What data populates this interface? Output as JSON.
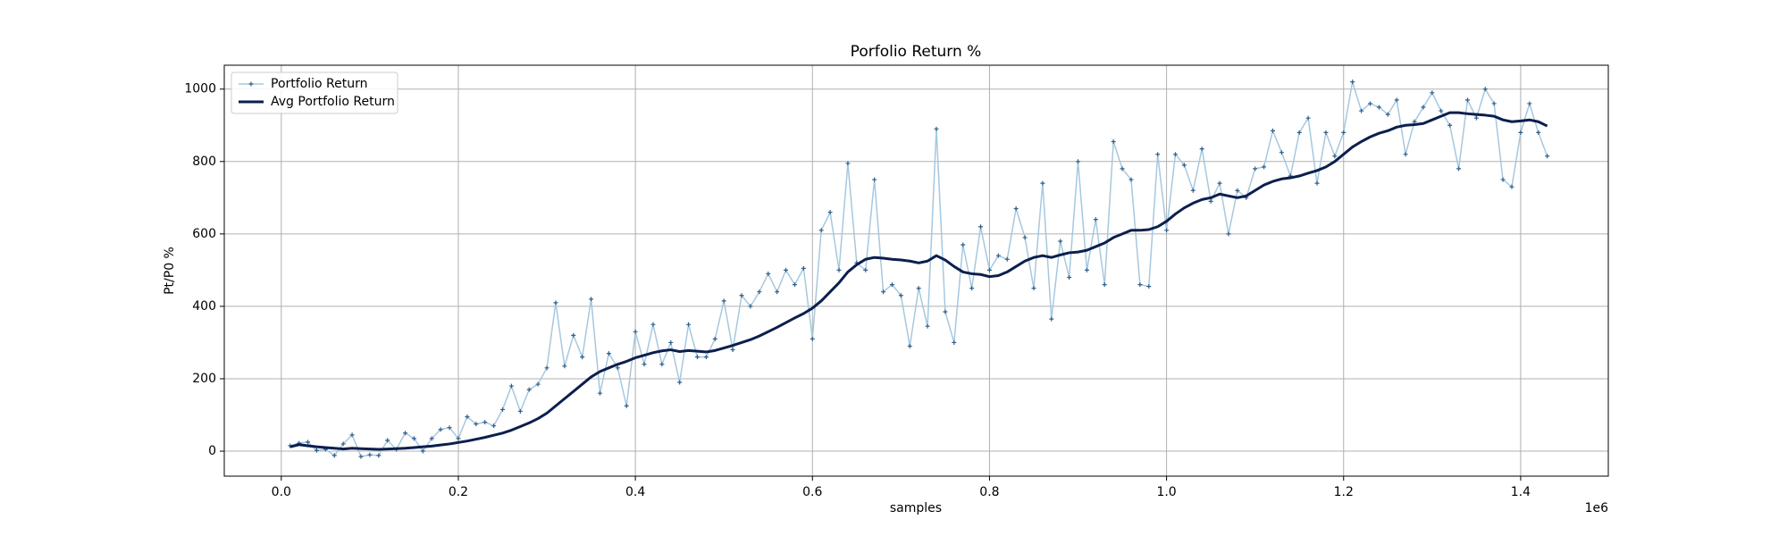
{
  "chart_data": {
    "type": "line",
    "title": "Porfolio Return %",
    "xlabel": "samples",
    "ylabel": "Pt/P0 %",
    "x_offset_label": "1e6",
    "x": [
      10000,
      20000,
      30000,
      40000,
      50000,
      60000,
      70000,
      80000,
      90000,
      100000,
      110000,
      120000,
      130000,
      140000,
      150000,
      160000,
      170000,
      180000,
      190000,
      200000,
      210000,
      220000,
      230000,
      240000,
      250000,
      260000,
      270000,
      280000,
      290000,
      300000,
      310000,
      320000,
      330000,
      340000,
      350000,
      360000,
      370000,
      380000,
      390000,
      400000,
      410000,
      420000,
      430000,
      440000,
      450000,
      460000,
      470000,
      480000,
      490000,
      500000,
      510000,
      520000,
      530000,
      540000,
      550000,
      560000,
      570000,
      580000,
      590000,
      600000,
      610000,
      620000,
      630000,
      640000,
      650000,
      660000,
      670000,
      680000,
      690000,
      700000,
      710000,
      720000,
      730000,
      740000,
      750000,
      760000,
      770000,
      780000,
      790000,
      800000,
      810000,
      820000,
      830000,
      840000,
      850000,
      860000,
      870000,
      880000,
      890000,
      900000,
      910000,
      920000,
      930000,
      940000,
      950000,
      960000,
      970000,
      980000,
      990000,
      1000000,
      1010000,
      1020000,
      1030000,
      1040000,
      1050000,
      1060000,
      1070000,
      1080000,
      1090000,
      1100000,
      1110000,
      1120000,
      1130000,
      1140000,
      1150000,
      1160000,
      1170000,
      1180000,
      1190000,
      1200000,
      1210000,
      1220000,
      1230000,
      1240000,
      1250000,
      1260000,
      1270000,
      1280000,
      1290000,
      1300000,
      1310000,
      1320000,
      1330000,
      1340000,
      1350000,
      1360000,
      1370000,
      1380000,
      1390000,
      1400000,
      1410000,
      1420000,
      1430000
    ],
    "series": [
      {
        "name": "Portfolio Return",
        "color": "#a6c8df",
        "marker_color": "#2f5f8a",
        "marker": true,
        "values": [
          15,
          22,
          25,
          2,
          5,
          -12,
          20,
          45,
          -15,
          -10,
          -12,
          30,
          5,
          50,
          35,
          0,
          35,
          60,
          65,
          35,
          95,
          75,
          80,
          70,
          115,
          180,
          110,
          170,
          185,
          230,
          410,
          235,
          320,
          260,
          420,
          160,
          270,
          230,
          125,
          330,
          240,
          350,
          240,
          300,
          190,
          350,
          260,
          260,
          310,
          415,
          280,
          430,
          400,
          440,
          490,
          440,
          500,
          460,
          505,
          310,
          610,
          660,
          500,
          795,
          520,
          500,
          750,
          440,
          460,
          430,
          290,
          450,
          345,
          890,
          385,
          300,
          570,
          450,
          620,
          500,
          540,
          530,
          670,
          590,
          450,
          740,
          365,
          580,
          480,
          800,
          500,
          640,
          460,
          855,
          780,
          750,
          460,
          455,
          820,
          610,
          820,
          790,
          720,
          835,
          690,
          740,
          600,
          720,
          700,
          780,
          785,
          885,
          825,
          760,
          880,
          920,
          740,
          880,
          815,
          880,
          1020,
          940,
          960,
          950,
          930,
          970,
          820,
          910,
          950,
          990,
          940,
          900,
          780,
          970,
          920,
          1000,
          960,
          750,
          730,
          880,
          960,
          880,
          815
        ]
      },
      {
        "name": "Avg Portfolio Return",
        "color": "#0b1f4d",
        "marker": false,
        "values": [
          12,
          18,
          15,
          12,
          10,
          8,
          6,
          8,
          7,
          6,
          5,
          6,
          7,
          8,
          10,
          12,
          14,
          17,
          20,
          24,
          28,
          33,
          38,
          44,
          50,
          58,
          68,
          78,
          90,
          105,
          125,
          145,
          165,
          185,
          205,
          220,
          230,
          240,
          248,
          258,
          265,
          272,
          277,
          280,
          275,
          278,
          276,
          274,
          278,
          285,
          292,
          300,
          308,
          318,
          330,
          342,
          355,
          368,
          380,
          395,
          415,
          440,
          465,
          495,
          515,
          530,
          535,
          533,
          530,
          528,
          525,
          520,
          525,
          540,
          528,
          510,
          495,
          490,
          488,
          482,
          485,
          495,
          510,
          525,
          535,
          540,
          535,
          542,
          548,
          550,
          555,
          565,
          575,
          590,
          600,
          610,
          610,
          612,
          620,
          635,
          655,
          672,
          685,
          695,
          700,
          710,
          705,
          700,
          705,
          720,
          735,
          745,
          752,
          755,
          760,
          768,
          775,
          785,
          800,
          820,
          840,
          855,
          868,
          878,
          885,
          895,
          900,
          902,
          905,
          915,
          925,
          935,
          935,
          932,
          930,
          928,
          925,
          915,
          910,
          912,
          915,
          910,
          898
        ]
      }
    ],
    "xlim": [
      -64400,
      1499000
    ],
    "ylim": [
      -69,
      1066
    ],
    "xticks": [
      {
        "value": 0,
        "label": "0.0"
      },
      {
        "value": 200000,
        "label": "0.2"
      },
      {
        "value": 400000,
        "label": "0.4"
      },
      {
        "value": 600000,
        "label": "0.6"
      },
      {
        "value": 800000,
        "label": "0.8"
      },
      {
        "value": 1000000,
        "label": "1.0"
      },
      {
        "value": 1200000,
        "label": "1.2"
      },
      {
        "value": 1400000,
        "label": "1.4"
      }
    ],
    "yticks": [
      0,
      200,
      400,
      600,
      800,
      1000
    ],
    "grid": true,
    "legend": "upper left"
  }
}
